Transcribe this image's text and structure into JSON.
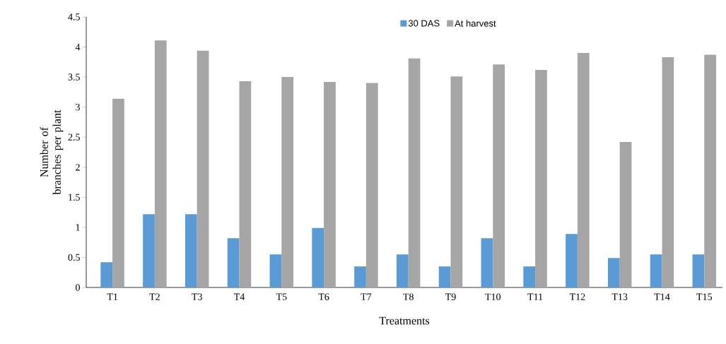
{
  "chart_data": {
    "type": "bar",
    "xlabel": "Treatments",
    "ylabel": "Number of branches per plant",
    "categories": [
      "T1",
      "T2",
      "T3",
      "T4",
      "T5",
      "T6",
      "T7",
      "T8",
      "T9",
      "T10",
      "T11",
      "T12",
      "T13",
      "T14",
      "T15"
    ],
    "series": [
      {
        "name": "30 DAS",
        "color": "#5b9bd5",
        "values": [
          0.42,
          1.22,
          1.22,
          0.82,
          0.55,
          0.99,
          0.35,
          0.55,
          0.35,
          0.82,
          0.35,
          0.89,
          0.49,
          0.55,
          0.55
        ]
      },
      {
        "name": "At harvest",
        "color": "#a5a5a5",
        "values": [
          3.14,
          4.11,
          3.94,
          3.43,
          3.5,
          3.42,
          3.4,
          3.81,
          3.51,
          3.71,
          3.62,
          3.9,
          2.42,
          3.83,
          3.87
        ]
      }
    ],
    "ylim": [
      0,
      4.5
    ],
    "yticks": [
      0,
      0.5,
      1,
      1.5,
      2,
      2.5,
      3,
      3.5,
      4,
      4.5
    ],
    "grid": false,
    "legend": "top"
  }
}
